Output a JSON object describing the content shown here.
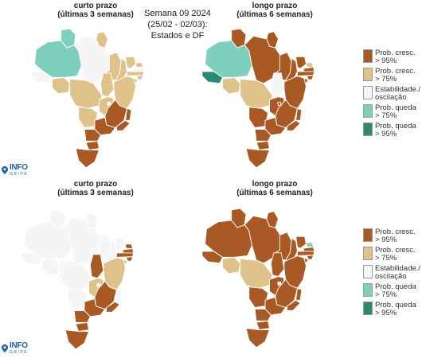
{
  "header": {
    "line1": "Semana 09 2024",
    "line2": "(25/02 - 02/03):",
    "line3": "Estados e DF"
  },
  "colors": {
    "c95": "#a95a24",
    "c75": "#dec28a",
    "est": "#f5f5f5",
    "q75": "#7ecfbd",
    "q95": "#2a8a70"
  },
  "legend": {
    "items": [
      {
        "label": "Prob. cresc.\n> 95%",
        "class": "c95"
      },
      {
        "label": "Prob. cresc.\n> 75%",
        "class": "c75"
      },
      {
        "label": "Estabilidade./\noscilação",
        "class": "est"
      },
      {
        "label": "Prob. queda\n> 75%",
        "class": "q75"
      },
      {
        "label": "Prob. queda\n> 95%",
        "class": "q95"
      }
    ]
  },
  "logo": {
    "main": "INFO",
    "sub": "GRIPE"
  },
  "panels": [
    {
      "title_line1": "curto prazo",
      "title_line2": "(últimas 3 semanas)",
      "states": {
        "AC": "est",
        "AM": "q75",
        "RR": "q75",
        "AP": "c75",
        "PA": "est",
        "TO": "c75",
        "MA": "c75",
        "PI": "c75",
        "CE": "c75",
        "RN": "c75",
        "PB": "est",
        "PE": "c75",
        "AL": "c75",
        "SE": "c75",
        "BA": "c75",
        "RO": "c75",
        "MT": "c75",
        "MS": "c75",
        "GO": "c75",
        "DF": "est",
        "MG": "c95",
        "ES": "c95",
        "RJ": "c95",
        "SP": "c95",
        "PR": "c95",
        "SC": "c95",
        "RS": "c95"
      }
    },
    {
      "title_line1": "longo prazo",
      "title_line2": "(últimas 6 semanas)",
      "states": {
        "AC": "q95",
        "AM": "q75",
        "RR": "c95",
        "AP": "c95",
        "PA": "c95",
        "TO": "est",
        "MA": "c95",
        "PI": "c95",
        "CE": "c95",
        "RN": "c75",
        "PB": "c95",
        "PE": "c95",
        "AL": "c95",
        "SE": "c95",
        "BA": "c95",
        "RO": "c75",
        "MT": "c75",
        "MS": "c95",
        "GO": "c95",
        "DF": "c95",
        "MG": "c95",
        "ES": "c95",
        "RJ": "c95",
        "SP": "c95",
        "PR": "c95",
        "SC": "c95",
        "RS": "c95"
      }
    },
    {
      "title_line1": "curto prazo",
      "title_line2": "(últimas 3 semanas)",
      "states": {
        "AC": "est",
        "AM": "est",
        "RR": "est",
        "AP": "est",
        "PA": "est",
        "TO": "c95",
        "MA": "est",
        "PI": "est",
        "CE": "est",
        "RN": "c95",
        "PB": "c95",
        "PE": "c95",
        "AL": "c95",
        "SE": "c75",
        "BA": "c75",
        "RO": "est",
        "MT": "est",
        "MS": "est",
        "GO": "c75",
        "DF": "est",
        "MG": "c95",
        "ES": "est",
        "RJ": "c95",
        "SP": "c95",
        "PR": "c95",
        "SC": "c95",
        "RS": "c95"
      }
    },
    {
      "title_line1": "longo prazo",
      "title_line2": "(últimas 6 semanas)",
      "states": {
        "AC": "c95",
        "AM": "c95",
        "RR": "c95",
        "AP": "c95",
        "PA": "c95",
        "TO": "c95",
        "MA": "c95",
        "PI": "c95",
        "CE": "c95",
        "RN": "q75",
        "PB": "c95",
        "PE": "c95",
        "AL": "c95",
        "SE": "c95",
        "BA": "c95",
        "RO": "c75",
        "MT": "c75",
        "MS": "c95",
        "GO": "c95",
        "DF": "est",
        "MG": "c95",
        "ES": "c95",
        "RJ": "c95",
        "SP": "c95",
        "PR": "c95",
        "SC": "c95",
        "RS": "c95"
      }
    }
  ]
}
